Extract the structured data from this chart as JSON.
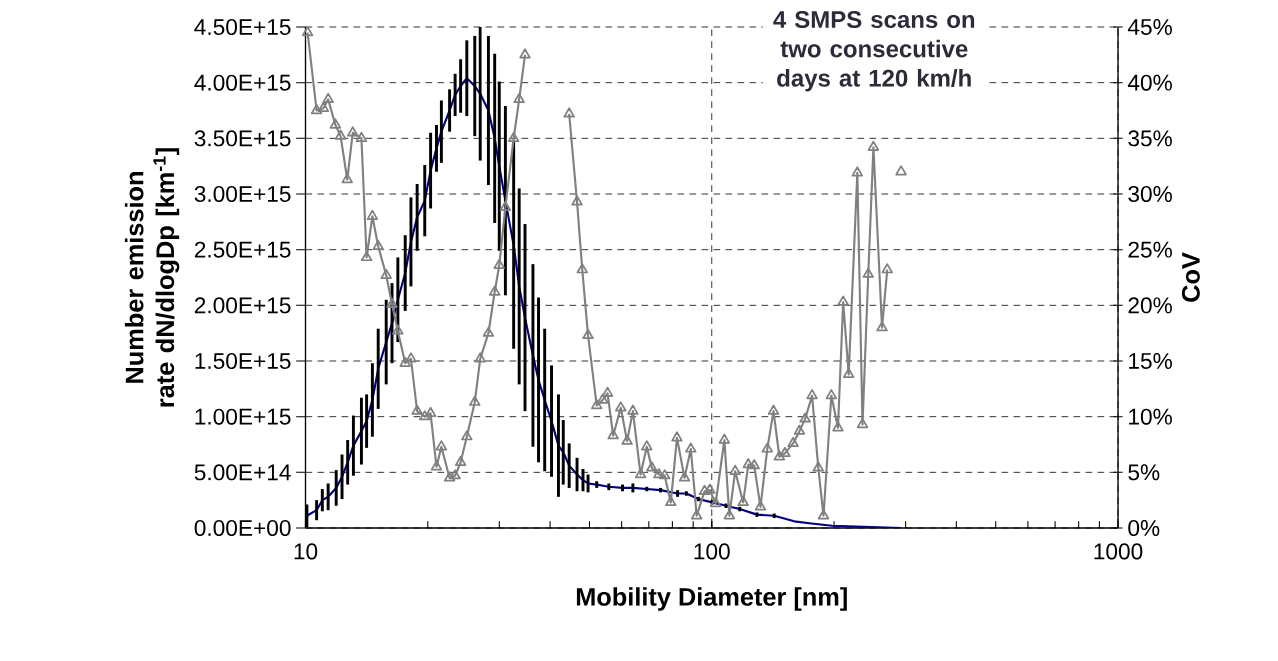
{
  "chart_data": {
    "type": "line",
    "xlabel": "Mobility Diameter [nm]",
    "ylabel": "Number emission rate dN/dlogDp [km$^{-1}$]",
    "y2label": "CoV",
    "annotations": [
      "4 SMPS scans on two consecutive days at 120 km/h"
    ],
    "log": "x",
    "grid": true,
    "xlim": [
      10,
      1000
    ],
    "xticks": [
      10,
      100,
      1000
    ],
    "ylim": [
      0,
      4500000000000000.0
    ],
    "yticks": [
      {
        "value": 0,
        "label": "0.00E+00"
      },
      {
        "value": 500000000000000.0,
        "label": "5.00E+14"
      },
      {
        "value": 1000000000000000.0,
        "label": "1.00E+15"
      },
      {
        "value": 1500000000000000.0,
        "label": "1.50E+15"
      },
      {
        "value": 2000000000000000.0,
        "label": "2.00E+15"
      },
      {
        "value": 2500000000000000.0,
        "label": "2.50E+15"
      },
      {
        "value": 3000000000000000.0,
        "label": "3.00E+15"
      },
      {
        "value": 3500000000000000.0,
        "label": "3.50E+15"
      },
      {
        "value": 4000000000000000.0,
        "label": "4.00E+15"
      },
      {
        "value": 4500000000000000.0,
        "label": "4.50E+15"
      }
    ],
    "y2lim": [
      0,
      45
    ],
    "y2ticks": [
      {
        "value": 0,
        "label": "0%"
      },
      {
        "value": 5,
        "label": "5%"
      },
      {
        "value": 10,
        "label": "10%"
      },
      {
        "value": 15,
        "label": "15%"
      },
      {
        "value": 20,
        "label": "20%"
      },
      {
        "value": 25,
        "label": "25%"
      },
      {
        "value": 30,
        "label": "30%"
      },
      {
        "value": 35,
        "label": "35%"
      },
      {
        "value": 40,
        "label": "40%"
      },
      {
        "value": 45,
        "label": "45%"
      }
    ],
    "series": [
      {
        "color": "#000080",
        "marker": "none",
        "x": [
          10.08,
          10.65,
          11.0,
          11.37,
          11.9,
          12.3,
          12.7,
          13.12,
          13.73,
          14.14,
          14.61,
          15.1,
          15.8,
          16.33,
          16.88,
          17.6,
          18.18,
          18.83,
          19.66,
          20.32,
          21.01,
          21.6,
          22.63,
          23.35,
          24.09,
          24.95,
          26.1,
          26.92,
          28.2,
          29.22,
          29.99,
          31.05,
          32.54,
          33.57,
          34.7,
          36.3,
          37.46,
          38.8,
          40.33,
          41.94,
          43.1,
          44.57,
          46.6,
          48.2,
          49.6,
          52.1,
          55.8,
          60.3,
          63.95,
          69.2,
          74.8,
          82.4,
          86.6,
          92.7,
          100.2,
          108.4,
          117.2,
          129.2,
          142.5,
          159.6,
          176.0,
          197.8,
          235.8,
          292.4
        ],
        "values": [
          110000000000000.0,
          160000000000000.0,
          250000000000000.0,
          280000000000000.0,
          360000000000000.0,
          460000000000000.0,
          590000000000000.0,
          740000000000000.0,
          870000000000000.0,
          960000000000000.0,
          1150000000000000.0,
          1430000000000000.0,
          1670000000000000.0,
          1840000000000000.0,
          2050000000000000.0,
          2290000000000000.0,
          2570000000000000.0,
          2790000000000000.0,
          2940000000000000.0,
          3210000000000000.0,
          3410000000000000.0,
          3560000000000000.0,
          3750000000000000.0,
          3890000000000000.0,
          3970000000000000.0,
          4040000000000000.0,
          3970000000000000.0,
          3900000000000000.0,
          3750000000000000.0,
          3500000000000000.0,
          3250000000000000.0,
          2940000000000000.0,
          2540000000000000.0,
          2170000000000000.0,
          1890000000000000.0,
          1550000000000000.0,
          1330000000000000.0,
          1150000000000000.0,
          960000000000000.0,
          740000000000000.0,
          680000000000000.0,
          560000000000000.0,
          480000000000000.0,
          430000000000000.0,
          400000000000000.0,
          390000000000000.0,
          370000000000000.0,
          360000000000000.0,
          360000000000000.0,
          350000000000000.0,
          340000000000000.0,
          310000000000000.0,
          310000000000000.0,
          260000000000000.0,
          230000000000000.0,
          200000000000000.0,
          170000000000000.0,
          120000000000000.0,
          110000000000000.0,
          60000000000000.0,
          40000000000000.0,
          20000000000000.0,
          10000000000000.0,
          0
        ],
        "errors": [
          100000000000000.0,
          90000000000000.0,
          100000000000000.0,
          120000000000000.0,
          160000000000000.0,
          200000000000000.0,
          200000000000000.0,
          270000000000000.0,
          300000000000000.0,
          240000000000000.0,
          330000000000000.0,
          360000000000000.0,
          380000000000000.0,
          360000000000000.0,
          380000000000000.0,
          340000000000000.0,
          400000000000000.0,
          300000000000000.0,
          320000000000000.0,
          340000000000000.0,
          210000000000000.0,
          280000000000000.0,
          190000000000000.0,
          190000000000000.0,
          240000000000000.0,
          340000000000000.0,
          450000000000000.0,
          600000000000000.0,
          670000000000000.0,
          760000000000000.0,
          760000000000000.0,
          850000000000000.0,
          930000000000000.0,
          880000000000000.0,
          840000000000000.0,
          820000000000000.0,
          740000000000000.0,
          640000000000000.0,
          500000000000000.0,
          460000000000000.0,
          290000000000000.0,
          200000000000000.0,
          150000000000000.0,
          100000000000000.0,
          80000000000000.0,
          30000000000000.0,
          30000000000000.0,
          30000000000000.0,
          40000000000000.0,
          20000000000000.0,
          20000000000000.0,
          30000000000000.0,
          20000000000000.0,
          20000000000000.0,
          20000000000000.0,
          20000000000000.0,
          20000000000000.0,
          20000000000000.0,
          20000000000000.0,
          null,
          null,
          null,
          null,
          null
        ]
      },
      {
        "axis": "y2",
        "color": "#808080",
        "marker": "triangle",
        "x": [
          10.12,
          10.65,
          11.07,
          11.37,
          11.85,
          12.2,
          12.67,
          13.07,
          13.73,
          14.14,
          14.61,
          15.1,
          15.8,
          16.33,
          16.88,
          17.6,
          18.18,
          18.83,
          19.66,
          20.32,
          21.01,
          21.6,
          22.63,
          23.35,
          24.09,
          24.95,
          26.1,
          26.92,
          28.2,
          29.22,
          29.99,
          31.05,
          32.54,
          33.57,
          34.7,
          36.3,
          38.8,
          41.94,
          44.57,
          46.6,
          48.0,
          49.6,
          52.1,
          53.9,
          55.4,
          57.2,
          59.7,
          61.9,
          63.95,
          66.8,
          69.2,
          71.2,
          74.1,
          76.6,
          79.3,
          82.1,
          85.7,
          88.8,
          91.8,
          96.0,
          98.9,
          102.2,
          107.4,
          110.5,
          114.2,
          119.5,
          123.0,
          127.2,
          131.8,
          137.0,
          141.9,
          146.7,
          151.4,
          158.6,
          164.4,
          169.8,
          176.6,
          182.9,
          188.4,
          197.0,
          204.5,
          210.6,
          217.3,
          228.2,
          235.0,
          242.8,
          250.0,
          262.5,
          270.4,
          281.2,
          292.4
        ],
        "values": [
          44.5,
          37.5,
          37.7,
          38.5,
          36.2,
          35.2,
          31.3,
          35.5,
          35.0,
          24.3,
          28.0,
          25.3,
          22.7,
          20.1,
          17.7,
          14.8,
          15.2,
          10.5,
          10.0,
          10.3,
          5.5,
          7.3,
          4.5,
          4.7,
          5.9,
          8.2,
          11.3,
          15.2,
          17.5,
          21.2,
          23.6,
          28.8,
          35.0,
          38.5,
          42.5,
          null,
          null,
          null,
          37.2,
          29.3,
          23.2,
          17.3,
          11.0,
          11.5,
          12.1,
          8.3,
          10.8,
          7.8,
          10.5,
          4.8,
          7.3,
          5.4,
          4.8,
          4.7,
          2.3,
          8.1,
          4.5,
          7.1,
          1.1,
          3.3,
          3.4,
          2.2,
          7.9,
          1.1,
          5.1,
          2.3,
          5.7,
          5.6,
          1.9,
          7.1,
          10.5,
          6.4,
          6.7,
          7.6,
          8.7,
          9.8,
          11.9,
          5.4,
          1.1,
          11.9,
          9.0,
          20.3,
          13.8,
          31.9,
          9.3,
          22.8,
          34.2,
          18.0,
          23.2,
          null,
          32.0
        ]
      }
    ]
  }
}
